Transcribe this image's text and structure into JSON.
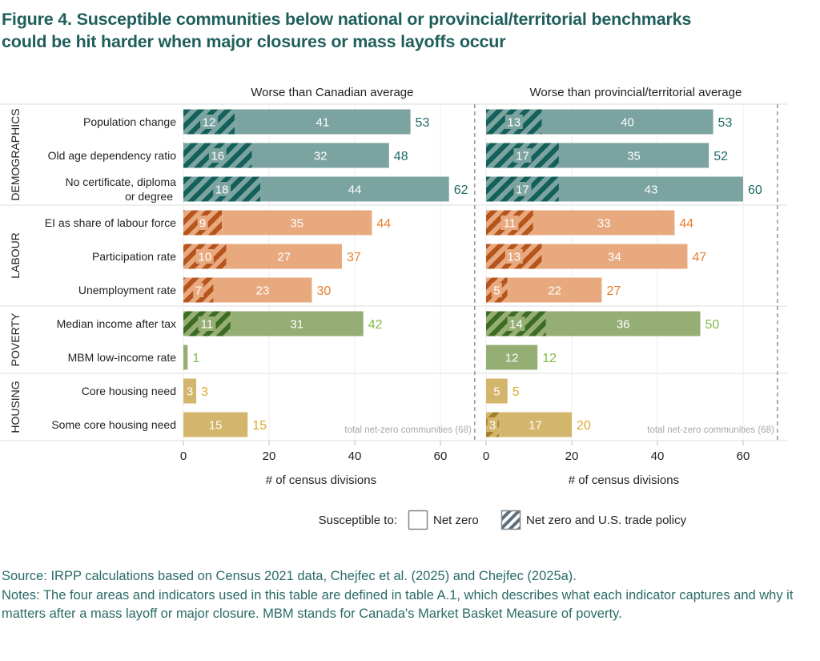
{
  "title": {
    "line1": "Figure 4. Susceptible communities below national or provincial/territorial benchmarks",
    "line2": "could be hit harder when major closures or mass layoffs occur"
  },
  "chart_data": {
    "type": "bar",
    "subtype": "stacked-horizontal-faceted",
    "panels": [
      {
        "title": "Worse than Canadian average",
        "xlabel": "# of census divisions",
        "xlim": [
          0,
          70
        ],
        "xticks": [
          0,
          20,
          40,
          60
        ]
      },
      {
        "title": "Worse than provincial/territorial average",
        "xlabel": "# of census divisions",
        "xlim": [
          0,
          70
        ],
        "xticks": [
          0,
          20,
          40,
          60
        ]
      }
    ],
    "reference_line": {
      "value": 68,
      "label": "total net-zero communities (68)",
      "style": "dashed"
    },
    "groups": [
      {
        "name": "DEMOGRAPHICS",
        "color": "#7ba3a0",
        "hatch_color": "#135f5a",
        "label_color": "#1f6b66",
        "indicators": [
          {
            "label": [
              "Population change"
            ],
            "canadian": {
              "both": 12,
              "net_zero": 41,
              "total": 53
            },
            "provincial": {
              "both": 13,
              "net_zero": 40,
              "total": 53
            }
          },
          {
            "label": [
              "Old age dependency ratio"
            ],
            "canadian": {
              "both": 16,
              "net_zero": 32,
              "total": 48
            },
            "provincial": {
              "both": 17,
              "net_zero": 35,
              "total": 52
            }
          },
          {
            "label": [
              "No certificate, diploma",
              "or degree"
            ],
            "canadian": {
              "both": 18,
              "net_zero": 44,
              "total": 62
            },
            "provincial": {
              "both": 17,
              "net_zero": 43,
              "total": 60
            }
          }
        ]
      },
      {
        "name": "LABOUR",
        "color": "#e8a97e",
        "hatch_color": "#b5541d",
        "label_color": "#e97f2e",
        "indicators": [
          {
            "label": [
              "EI as share of labour force"
            ],
            "canadian": {
              "both": 9,
              "net_zero": 35,
              "total": 44
            },
            "provincial": {
              "both": 11,
              "net_zero": 33,
              "total": 44
            }
          },
          {
            "label": [
              "Participation rate"
            ],
            "canadian": {
              "both": 10,
              "net_zero": 27,
              "total": 37
            },
            "provincial": {
              "both": 13,
              "net_zero": 34,
              "total": 47
            }
          },
          {
            "label": [
              "Unemployment rate"
            ],
            "canadian": {
              "both": 7,
              "net_zero": 23,
              "total": 30
            },
            "provincial": {
              "both": 5,
              "net_zero": 22,
              "total": 27
            }
          }
        ]
      },
      {
        "name": "POVERTY",
        "color": "#95ae74",
        "hatch_color": "#3d6b22",
        "label_color": "#7fba45",
        "indicators": [
          {
            "label": [
              "Median income after tax"
            ],
            "canadian": {
              "both": 11,
              "net_zero": 31,
              "total": 42
            },
            "provincial": {
              "both": 14,
              "net_zero": 36,
              "total": 50
            }
          },
          {
            "label": [
              "MBM low-income rate"
            ],
            "canadian": {
              "both": 0,
              "net_zero": 1,
              "total": 1
            },
            "provincial": {
              "both": 0,
              "net_zero": 12,
              "total": 12
            }
          }
        ]
      },
      {
        "name": "HOUSING",
        "color": "#d4b56c",
        "hatch_color": "#a0802a",
        "label_color": "#e0a82e",
        "indicators": [
          {
            "label": [
              "Core housing need"
            ],
            "canadian": {
              "both": 0,
              "net_zero": 3,
              "total": 3
            },
            "provincial": {
              "both": 0,
              "net_zero": 5,
              "total": 5
            }
          },
          {
            "label": [
              "Some core housing need"
            ],
            "canadian": {
              "both": 0,
              "net_zero": 15,
              "total": 15
            },
            "provincial": {
              "both": 3,
              "net_zero": 17,
              "total": 20
            }
          }
        ]
      }
    ],
    "legend": {
      "title": "Susceptible to:",
      "items": [
        {
          "label": "Net zero",
          "style": "open-box"
        },
        {
          "label": "Net zero and U.S. trade policy",
          "style": "hatched"
        }
      ],
      "position": "bottom-center"
    }
  },
  "notes": {
    "source": "Source: IRPP calculations based on Census 2021 data, Chejfec et al. (2025) and Chejfec (2025a).",
    "notes": "Notes: The four areas and indicators used in this table are defined in table A.1, which describes what each indicator captures and why it matters after a mass layoff or major closure. MBM stands for Canada's Market Basket Measure of poverty."
  }
}
